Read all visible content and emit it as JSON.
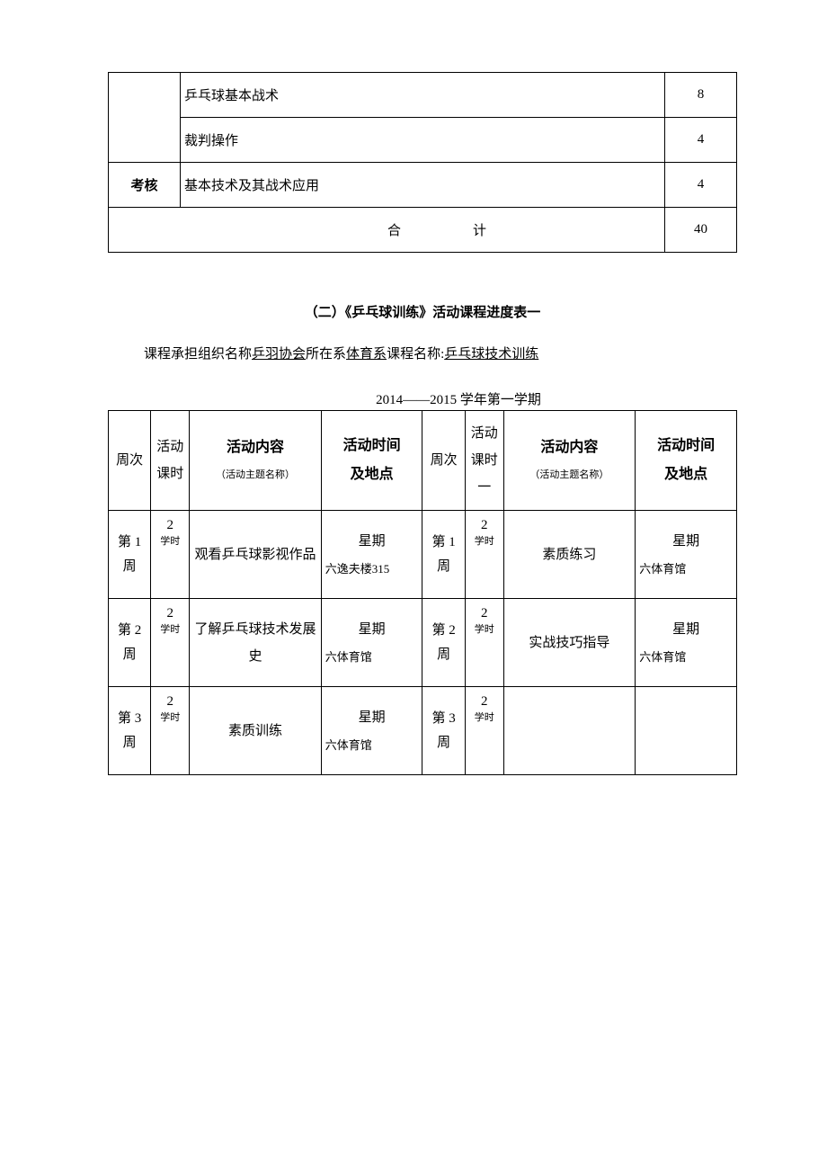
{
  "table1": {
    "rows": [
      {
        "cat": "",
        "desc": "乒乓球基本战术",
        "val": "8"
      },
      {
        "cat": "",
        "desc": "裁判操作",
        "val": "4"
      },
      {
        "cat": "考核",
        "desc": "基本技术及其战术应用",
        "val": "4"
      }
    ],
    "total_label": "合计",
    "total_val": "40"
  },
  "section_title": "（二）《乒乓球训练》活动课程进度表一",
  "course_line": {
    "prefix1": "课程承担组织名称",
    "org": "乒羽协会",
    "prefix2": "所在系",
    "dept": "体育系",
    "prefix3": "课程名称:",
    "name": "乒乓球技术训练"
  },
  "semester": "2014——2015 学年第一学期",
  "table2": {
    "headers": {
      "week": "周次",
      "hours": "活动课时",
      "content_main": "活动内容",
      "content_sub": "（活动主题名称）",
      "time_l1": "活动时间",
      "time_l2": "及地点",
      "hours2": "活动课时一"
    },
    "rows": [
      {
        "left": {
          "week": "第 1 周",
          "hours_num": "2",
          "hours_unit": "学时",
          "content": "观看乒乓球影视作品",
          "time_day": "星期",
          "time_loc": "六逸夫楼315"
        },
        "right": {
          "week": "第 1 周",
          "hours_num": "2",
          "hours_unit": "学时",
          "content": "素质练习",
          "time_day": "星期",
          "time_loc": "六体育馆"
        }
      },
      {
        "left": {
          "week": "第 2 周",
          "hours_num": "2",
          "hours_unit": "学时",
          "content": "了解乒乓球技术发展史",
          "time_day": "星期",
          "time_loc": "六体育馆"
        },
        "right": {
          "week": "第 2 周",
          "hours_num": "2",
          "hours_unit": "学时",
          "content": "实战技巧指导",
          "time_day": "星期",
          "time_loc": "六体育馆"
        }
      },
      {
        "left": {
          "week": "第 3 周",
          "hours_num": "2",
          "hours_unit": "学时",
          "content": "素质训练",
          "time_day": "星期",
          "time_loc": "六体育馆"
        },
        "right": {
          "week": "第 3 周",
          "hours_num": "2",
          "hours_unit": "学时",
          "content": "",
          "time_day": "",
          "time_loc": ""
        }
      }
    ]
  }
}
